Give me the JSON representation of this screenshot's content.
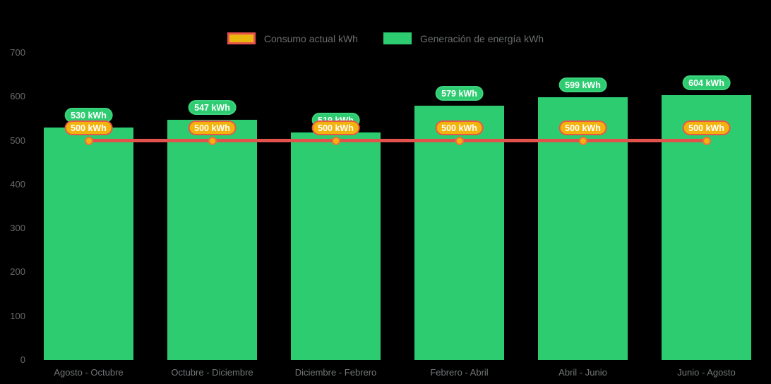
{
  "chart_data": {
    "type": "bar",
    "categories": [
      "Agosto - Octubre",
      "Octubre - Diciembre",
      "Diciembre - Febrero",
      "Febrero - Abril",
      "Abril - Junio",
      "Junio - Agosto"
    ],
    "series": [
      {
        "name": "Generación de energía kWh",
        "type": "bar",
        "color": "#2ecc71",
        "values": [
          530,
          547,
          519,
          579,
          599,
          604
        ],
        "labels": [
          "530 kWh",
          "547 kWh",
          "519 kWh",
          "579 kWh",
          "599 kWh",
          "604 kWh"
        ]
      },
      {
        "name": "Consumo actual kWh",
        "type": "line",
        "color": "#e2524c",
        "marker_color": "#f5b30e",
        "values": [
          500,
          500,
          500,
          500,
          500,
          500
        ],
        "labels": [
          "500 kWh",
          "500 kWh",
          "500 kWh",
          "500 kWh",
          "500 kWh",
          "500 kWh"
        ]
      }
    ],
    "title": "",
    "xlabel": "",
    "ylabel": "",
    "ylim": [
      0,
      700
    ],
    "yticks": [
      0,
      100,
      200,
      300,
      400,
      500,
      600,
      700
    ],
    "grid": false,
    "legend_position": "top-center",
    "background": "#000000"
  },
  "legend": {
    "consumo_label": "Consumo actual kWh",
    "generacion_label": "Generación de energía kWh"
  }
}
